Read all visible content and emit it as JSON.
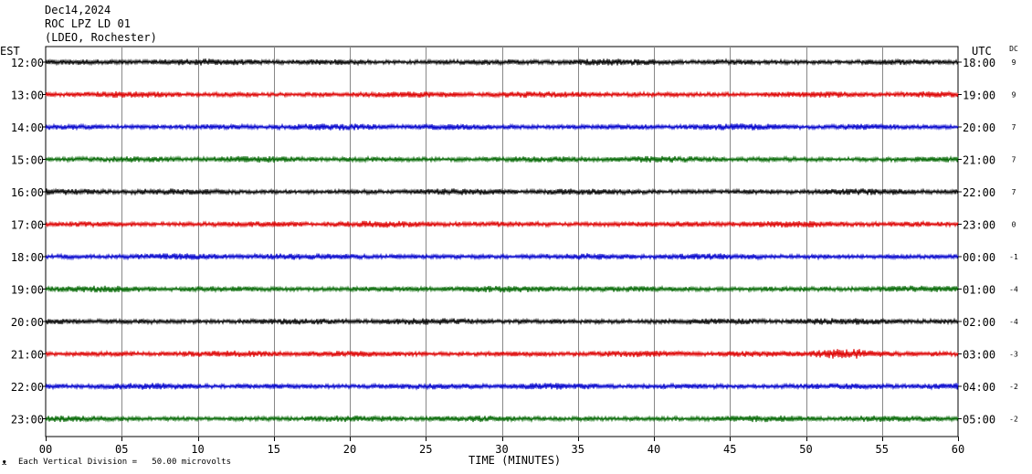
{
  "header": {
    "date": "Dec14,2024",
    "station": "ROC LPZ LD 01",
    "network": "(LDEO, Rochester)"
  },
  "labels": {
    "left_tz": "EST",
    "right_tz": "UTC",
    "dc": "DC",
    "x_title": "TIME (MINUTES)",
    "scale_note": "Each Vertical Division =   50.00 microvolts",
    "corner_mark": "ᴥ"
  },
  "chart_data": {
    "type": "line",
    "title": "",
    "xlabel": "TIME (MINUTES)",
    "ylabel": "",
    "xlim": [
      0,
      60
    ],
    "x_ticks": [
      "00",
      "05",
      "10",
      "15",
      "20",
      "25",
      "30",
      "35",
      "40",
      "45",
      "50",
      "55",
      "60"
    ],
    "grid": "vertical every 5 minutes",
    "colors": [
      "#000000",
      "#dd0000",
      "#0000cc",
      "#006600"
    ],
    "rows": [
      {
        "est": "12:00",
        "utc": "18:00",
        "dc": "9",
        "color": "#000000"
      },
      {
        "est": "13:00",
        "utc": "19:00",
        "dc": "9",
        "color": "#dd0000"
      },
      {
        "est": "14:00",
        "utc": "20:00",
        "dc": "7",
        "color": "#0000cc"
      },
      {
        "est": "15:00",
        "utc": "21:00",
        "dc": "7",
        "color": "#006600"
      },
      {
        "est": "16:00",
        "utc": "22:00",
        "dc": "7",
        "color": "#000000"
      },
      {
        "est": "17:00",
        "utc": "23:00",
        "dc": "0",
        "color": "#dd0000"
      },
      {
        "est": "18:00",
        "utc": "00:00",
        "dc": "-1",
        "color": "#0000cc"
      },
      {
        "est": "19:00",
        "utc": "01:00",
        "dc": "-4",
        "color": "#006600"
      },
      {
        "est": "20:00",
        "utc": "02:00",
        "dc": "-4",
        "color": "#000000"
      },
      {
        "est": "21:00",
        "utc": "03:00",
        "dc": "-3",
        "color": "#dd0000"
      },
      {
        "est": "22:00",
        "utc": "04:00",
        "dc": "-2",
        "color": "#0000cc"
      },
      {
        "est": "23:00",
        "utc": "05:00",
        "dc": "-2",
        "color": "#006600"
      }
    ],
    "events": [
      {
        "row": 9,
        "start_minute": 50,
        "end_minute": 56,
        "label": ""
      }
    ]
  }
}
